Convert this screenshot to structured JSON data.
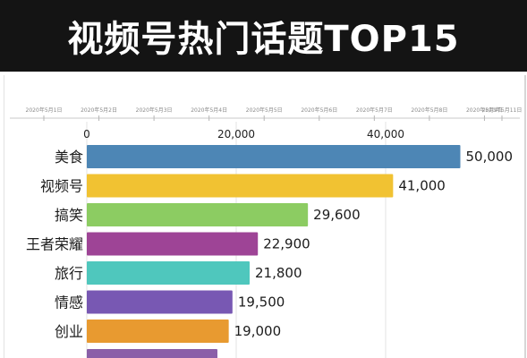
{
  "header": {
    "title": "视频号热门话题TOP15"
  },
  "timeline": {
    "dates": [
      "2020年5月1日",
      "2020年5月2日",
      "2020年5月3日",
      "2020年5月4日",
      "2020年5月5日",
      "2020年5月6日",
      "2020年5月7日",
      "2020年5月8日",
      "2020年5月9日",
      "2020年5月11日"
    ]
  },
  "chart_data": {
    "type": "bar",
    "orientation": "horizontal",
    "title": "视频号热门话题TOP15",
    "categories": [
      "美食",
      "视频号",
      "搞笑",
      "王者荣耀",
      "旅行",
      "情感",
      "创业"
    ],
    "values": [
      50000,
      41000,
      29600,
      22900,
      21800,
      19500,
      19000
    ],
    "value_labels": [
      "50,000",
      "41,000",
      "29,600",
      "22,900",
      "21,800",
      "19,500",
      "19,000"
    ],
    "colors": [
      "#4d86b5",
      "#f1c232",
      "#8ccc62",
      "#9e4496",
      "#4fc7bd",
      "#7858b3",
      "#e89a30"
    ],
    "xticks": [
      0,
      20000,
      40000
    ],
    "xtick_labels": [
      "0",
      "20,000",
      "40,000"
    ],
    "xlim": [
      0,
      60000
    ],
    "grid": true
  }
}
